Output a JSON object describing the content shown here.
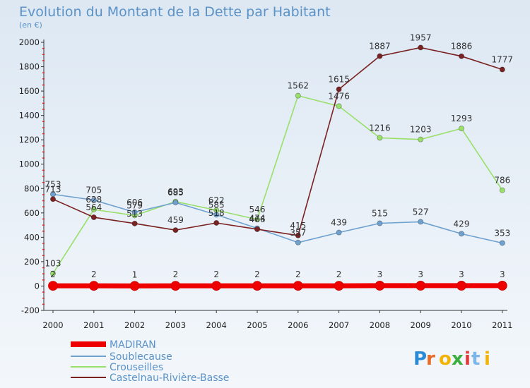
{
  "chart_data": {
    "type": "line",
    "title": "Evolution du Montant de la Dette par Habitant",
    "subtitle": "(en €)",
    "xlabel": "",
    "ylabel": "",
    "categories": [
      "2000",
      "2001",
      "2002",
      "2003",
      "2004",
      "2005",
      "2006",
      "2007",
      "2008",
      "2009",
      "2010",
      "2011"
    ],
    "ylim": [
      -200,
      2000
    ],
    "yticks": [
      "2000",
      "1800",
      "1600",
      "1400",
      "1200",
      "1000",
      "800",
      "600",
      "400",
      "200",
      "0",
      "-200"
    ],
    "grid": false,
    "legend_position": "bottom-left",
    "series": [
      {
        "name": "MADIRAN",
        "color": "#ee0000",
        "thick": true,
        "values": [
          2,
          2,
          1,
          2,
          2,
          2,
          2,
          2,
          3,
          3,
          3,
          3
        ],
        "labels": [
          "2",
          "2",
          "1",
          "2",
          "2",
          "2",
          "2",
          "2",
          "3",
          "3",
          "3",
          "3"
        ]
      },
      {
        "name": "Soublecause",
        "color": "#6fa1cf",
        "thick": false,
        "values": [
          753,
          705,
          606,
          685,
          585,
          474,
          357,
          439,
          515,
          527,
          429,
          353
        ],
        "labels": [
          "753",
          "705",
          "606",
          "685",
          "585",
          "474",
          "357",
          "439",
          "515",
          "527",
          "429",
          "353"
        ]
      },
      {
        "name": "Crouseilles",
        "color": "#99e06a",
        "thick": false,
        "values": [
          103,
          628,
          579,
          693,
          622,
          546,
          1562,
          1476,
          1216,
          1203,
          1293,
          786
        ],
        "labels": [
          "103",
          "628",
          "579",
          "693",
          "622",
          "546",
          "1562",
          "1476",
          "1216",
          "1203",
          "1293",
          "786"
        ]
      },
      {
        "name": "Castelnau-Rivière-Basse",
        "color": "#7a2222",
        "thick": false,
        "values": [
          713,
          564,
          513,
          459,
          518,
          466,
          415,
          1615,
          1887,
          1957,
          1886,
          1777
        ],
        "labels": [
          "713",
          "564",
          "513",
          "459",
          "518",
          "466",
          "415",
          "1615",
          "1887",
          "1957",
          "1886",
          "1777"
        ]
      }
    ]
  },
  "logo": {
    "text": "Proxiti"
  }
}
